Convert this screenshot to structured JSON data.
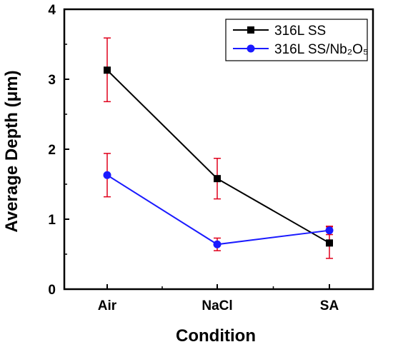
{
  "chart_data": {
    "type": "line",
    "title": "",
    "xlabel": "Condition",
    "ylabel": "Average Depth (μm)",
    "categories": [
      "Air",
      "NaCl",
      "SA"
    ],
    "ylim": [
      0,
      4
    ],
    "yticks": [
      "0",
      "1",
      "2",
      "3",
      "4"
    ],
    "grid": false,
    "legend_position": "top-right",
    "series": [
      {
        "name": "316L SS",
        "color": "#000000",
        "marker": "square",
        "values": [
          3.13,
          1.58,
          0.66
        ],
        "error_low": [
          2.68,
          1.29,
          0.44
        ],
        "error_high": [
          3.59,
          1.87,
          0.89
        ]
      },
      {
        "name": "316L SS/Nb₂O₅",
        "color": "#1a1aff",
        "marker": "circle",
        "values": [
          1.63,
          0.64,
          0.84
        ],
        "error_low": [
          1.32,
          0.55,
          0.78
        ],
        "error_high": [
          1.94,
          0.73,
          0.9
        ]
      }
    ],
    "errorbar_color": "#e0001b"
  }
}
